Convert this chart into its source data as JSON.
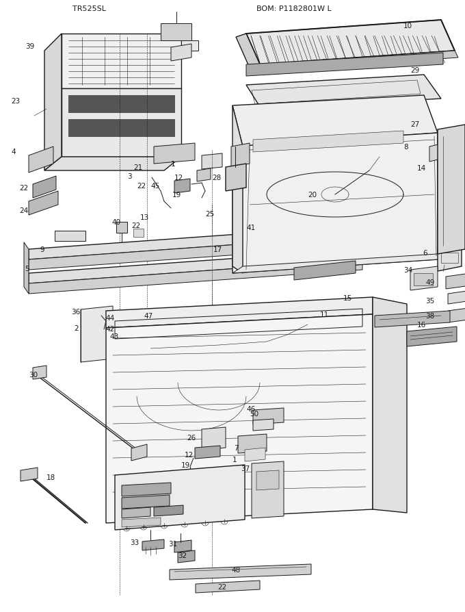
{
  "title_left": "TR525SL",
  "title_right": "BOM: P1182801W L",
  "bg_color": "#ffffff",
  "fig_width": 6.8,
  "fig_height": 8.95,
  "dpi": 100
}
